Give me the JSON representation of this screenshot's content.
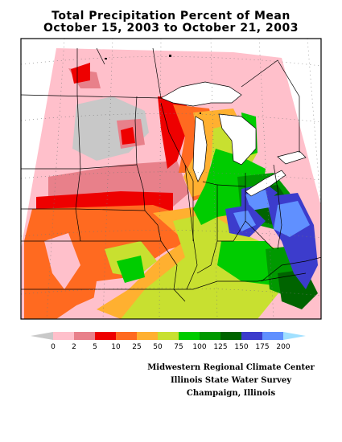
{
  "title": {
    "line1": "Total Precipitation Percent of Mean",
    "line2": "October 15, 2003 to October 21, 2003"
  },
  "legend": {
    "labels": [
      "0",
      "2",
      "5",
      "10",
      "25",
      "50",
      "75",
      "100",
      "125",
      "150",
      "175",
      "200"
    ],
    "colors": [
      "#c8c8c8",
      "#ffc0cb",
      "#e8808a",
      "#ee0000",
      "#ff6a20",
      "#ffb030",
      "#c8e030",
      "#00cc00",
      "#009900",
      "#006400",
      "#3c3ccc",
      "#6090ff",
      "#a0e0ff"
    ]
  },
  "credits": {
    "line1": "Midwestern Regional Climate Center",
    "line2": "Illinois State Water Survey",
    "line3": "Champaign, Illinois"
  },
  "palette": {
    "background": "#ffffff",
    "grid_dots": "#777777",
    "borders": "#000000",
    "water": "#ffffff"
  }
}
